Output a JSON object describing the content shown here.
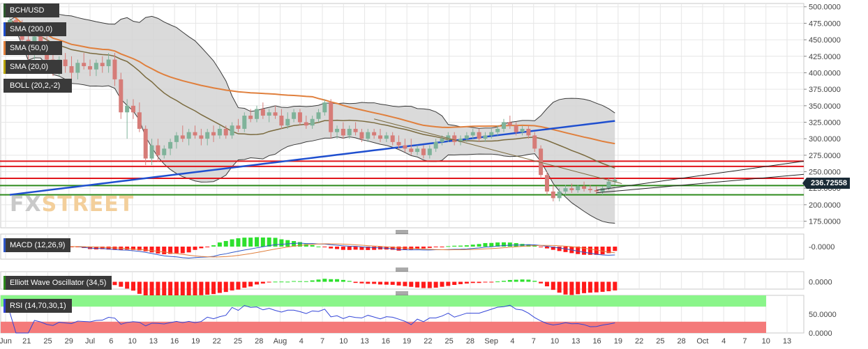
{
  "colors": {
    "background": "#ffffff",
    "grid": "#e6e6e6",
    "band_fill": "#d4d4d4",
    "band_line": "#3a3a3a",
    "sma200": "#1f4fcf",
    "sma50": "#e07f3c",
    "sma20": "#7a6a3e",
    "candle_up": "#7fb39a",
    "candle_down": "#d67c78",
    "resistance": "#e0151b",
    "support": "#2d8a1c",
    "trend": "#222222",
    "macd_line": "#2f57c8",
    "signal_line": "#e07f3c",
    "hist_pos": "#2ee02e",
    "hist_neg": "#ff1a1a",
    "rsi_line": "#3345d8",
    "rsi_upper_fill": "#8af58a",
    "rsi_lower_fill": "#f47a7a"
  },
  "chart_data": [
    {
      "type": "candlestick",
      "pane": "price",
      "symbol": "BCH/USD",
      "last_price": "236.72558",
      "ylim": [
        165,
        505
      ],
      "y_ticks": [
        "500.0000",
        "475.0000",
        "450.0000",
        "425.0000",
        "400.0000",
        "375.0000",
        "350.0000",
        "325.0000",
        "300.0000",
        "275.0000",
        "250.0000",
        "225.0000",
        "200.0000",
        "175.0000"
      ],
      "x_ticks": [
        "Jun",
        "21",
        "25",
        "29",
        "Jul",
        "6",
        "10",
        "13",
        "16",
        "19",
        "22",
        "25",
        "28",
        "Aug",
        "4",
        "7",
        "10",
        "13",
        "16",
        "19",
        "22",
        "25",
        "28",
        "Sep",
        "4",
        "7",
        "10",
        "13",
        "16",
        "19",
        "22",
        "25",
        "28",
        "Oct",
        "4",
        "7",
        "10",
        "13"
      ],
      "indicators": [
        "SMA (200,0)",
        "SMA (50,0)",
        "SMA (20,0)",
        "BOLL (20,2,-2)"
      ],
      "horizontal_levels": {
        "resistance": [
          266,
          258,
          240
        ],
        "support": [
          229,
          215
        ]
      },
      "candles": [
        [
          470,
          490,
          460,
          480
        ],
        [
          480,
          500,
          465,
          470
        ],
        [
          470,
          480,
          440,
          450
        ],
        [
          450,
          465,
          420,
          430
        ],
        [
          430,
          460,
          420,
          455
        ],
        [
          455,
          470,
          440,
          445
        ],
        [
          445,
          455,
          400,
          420
        ],
        [
          420,
          435,
          395,
          405
        ],
        [
          405,
          425,
          395,
          420
        ],
        [
          420,
          430,
          400,
          410
        ],
        [
          410,
          425,
          390,
          400
        ],
        [
          400,
          420,
          390,
          415
        ],
        [
          415,
          430,
          405,
          410
        ],
        [
          410,
          420,
          395,
          405
        ],
        [
          405,
          420,
          395,
          415
        ],
        [
          415,
          425,
          400,
          410
        ],
        [
          410,
          430,
          400,
          420
        ],
        [
          420,
          430,
          380,
          390
        ],
        [
          390,
          400,
          330,
          340
        ],
        [
          340,
          360,
          300,
          350
        ],
        [
          350,
          360,
          330,
          340
        ],
        [
          340,
          355,
          310,
          315
        ],
        [
          315,
          320,
          260,
          270
        ],
        [
          270,
          300,
          260,
          290
        ],
        [
          290,
          300,
          265,
          275
        ],
        [
          275,
          290,
          270,
          285
        ],
        [
          285,
          300,
          275,
          295
        ],
        [
          295,
          310,
          285,
          305
        ],
        [
          305,
          320,
          295,
          300
        ],
        [
          300,
          315,
          290,
          310
        ],
        [
          310,
          320,
          300,
          305
        ],
        [
          305,
          315,
          290,
          300
        ],
        [
          300,
          315,
          290,
          310
        ],
        [
          310,
          320,
          295,
          305
        ],
        [
          305,
          320,
          300,
          315
        ],
        [
          315,
          320,
          300,
          305
        ],
        [
          305,
          325,
          300,
          320
        ],
        [
          320,
          330,
          310,
          315
        ],
        [
          315,
          340,
          310,
          335
        ],
        [
          335,
          345,
          325,
          330
        ],
        [
          330,
          350,
          325,
          345
        ],
        [
          345,
          355,
          330,
          335
        ],
        [
          335,
          345,
          325,
          340
        ],
        [
          340,
          350,
          330,
          335
        ],
        [
          335,
          345,
          315,
          320
        ],
        [
          320,
          340,
          315,
          330
        ],
        [
          330,
          345,
          325,
          340
        ],
        [
          340,
          345,
          320,
          325
        ],
        [
          325,
          335,
          315,
          320
        ],
        [
          320,
          335,
          315,
          330
        ],
        [
          330,
          345,
          325,
          340
        ],
        [
          340,
          360,
          335,
          355
        ],
        [
          355,
          360,
          300,
          310
        ],
        [
          310,
          320,
          300,
          315
        ],
        [
          315,
          325,
          300,
          305
        ],
        [
          305,
          320,
          300,
          315
        ],
        [
          315,
          325,
          305,
          310
        ],
        [
          310,
          315,
          295,
          300
        ],
        [
          300,
          315,
          295,
          310
        ],
        [
          310,
          315,
          300,
          305
        ],
        [
          305,
          315,
          295,
          300
        ],
        [
          300,
          310,
          295,
          305
        ],
        [
          305,
          310,
          290,
          295
        ],
        [
          295,
          305,
          285,
          290
        ],
        [
          290,
          300,
          280,
          285
        ],
        [
          285,
          300,
          275,
          280
        ],
        [
          280,
          290,
          275,
          285
        ],
        [
          285,
          290,
          270,
          275
        ],
        [
          275,
          290,
          270,
          285
        ],
        [
          285,
          300,
          280,
          295
        ],
        [
          295,
          305,
          290,
          300
        ],
        [
          300,
          310,
          295,
          305
        ],
        [
          305,
          310,
          290,
          295
        ],
        [
          295,
          305,
          290,
          300
        ],
        [
          300,
          310,
          295,
          305
        ],
        [
          305,
          315,
          300,
          310
        ],
        [
          310,
          315,
          295,
          300
        ],
        [
          300,
          310,
          295,
          305
        ],
        [
          305,
          315,
          300,
          310
        ],
        [
          310,
          320,
          305,
          315
        ],
        [
          315,
          330,
          310,
          325
        ],
        [
          325,
          335,
          315,
          320
        ],
        [
          320,
          325,
          305,
          310
        ],
        [
          310,
          320,
          305,
          315
        ],
        [
          315,
          320,
          300,
          305
        ],
        [
          305,
          310,
          280,
          285
        ],
        [
          285,
          290,
          240,
          245
        ],
        [
          245,
          250,
          215,
          220
        ],
        [
          220,
          230,
          205,
          210
        ],
        [
          210,
          225,
          205,
          220
        ],
        [
          220,
          230,
          215,
          225
        ],
        [
          225,
          232,
          218,
          222
        ],
        [
          222,
          230,
          218,
          228
        ],
        [
          228,
          235,
          220,
          224
        ],
        [
          224,
          230,
          218,
          222
        ],
        [
          222,
          228,
          216,
          220
        ],
        [
          220,
          228,
          215,
          225
        ],
        [
          225,
          240,
          222,
          235
        ],
        [
          235,
          242,
          230,
          238
        ]
      ]
    },
    {
      "type": "line",
      "pane": "macd",
      "title": "MACD (12,26,9)",
      "y_ticks": [
        "-0.0000"
      ]
    },
    {
      "type": "bar",
      "pane": "ewo",
      "title": "Elliott Wave Oscillator (34,5)",
      "y_ticks": [
        "0.0000"
      ]
    },
    {
      "type": "line",
      "pane": "rsi",
      "title": "RSI (14,70,30,1)",
      "ylim": [
        0,
        100
      ],
      "bands": [
        70,
        30
      ],
      "y_ticks": [
        "50.0000",
        "0.0000"
      ]
    }
  ],
  "watermark": {
    "part1": "FX",
    "part2": "STREET"
  }
}
